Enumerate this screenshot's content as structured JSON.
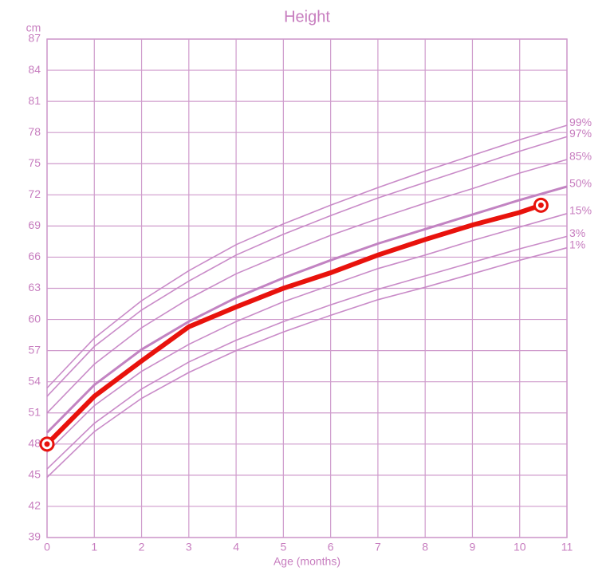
{
  "chart_data": {
    "type": "line",
    "title": "Height",
    "y_unit": "cm",
    "x_label": "Age (months)",
    "xlim": [
      0,
      11
    ],
    "ylim": [
      39,
      87
    ],
    "xticks": [
      0,
      1,
      2,
      3,
      4,
      5,
      6,
      7,
      8,
      9,
      10,
      11
    ],
    "yticks": [
      39,
      42,
      45,
      48,
      51,
      54,
      57,
      60,
      63,
      66,
      69,
      72,
      75,
      78,
      81,
      84,
      87
    ],
    "grid": true,
    "grid_color": "#cf9bcc",
    "x": [
      0,
      1,
      2,
      3,
      4,
      5,
      6,
      7,
      8,
      9,
      10,
      11
    ],
    "series": [
      {
        "name": "99%",
        "color": "#c98bc8",
        "values": [
          53.4,
          58.2,
          61.8,
          64.7,
          67.2,
          69.2,
          71.0,
          72.7,
          74.3,
          75.8,
          77.3,
          78.7
        ]
      },
      {
        "name": "97%",
        "color": "#c98bc8",
        "values": [
          52.6,
          57.4,
          60.9,
          63.7,
          66.2,
          68.2,
          70.0,
          71.7,
          73.2,
          74.7,
          76.2,
          77.6
        ]
      },
      {
        "name": "85%",
        "color": "#c98bc8",
        "values": [
          51.0,
          55.7,
          59.2,
          62.0,
          64.4,
          66.3,
          68.1,
          69.7,
          71.2,
          72.6,
          74.1,
          75.4
        ]
      },
      {
        "name": "50%",
        "color": "#c283c2",
        "values": [
          49.1,
          53.7,
          57.1,
          59.8,
          62.1,
          64.0,
          65.7,
          67.3,
          68.7,
          70.1,
          71.5,
          72.8
        ]
      },
      {
        "name": "15%",
        "color": "#c98bc8",
        "values": [
          47.2,
          51.7,
          55.0,
          57.6,
          59.8,
          61.7,
          63.3,
          64.9,
          66.2,
          67.6,
          68.9,
          70.2
        ]
      },
      {
        "name": "3%",
        "color": "#c98bc8",
        "values": [
          45.6,
          50.0,
          53.3,
          55.9,
          58.0,
          59.8,
          61.4,
          62.9,
          64.2,
          65.5,
          66.8,
          68.0
        ]
      },
      {
        "name": "1%",
        "color": "#c98bc8",
        "values": [
          44.8,
          49.2,
          52.4,
          54.9,
          57.0,
          58.8,
          60.4,
          61.9,
          63.1,
          64.4,
          65.7,
          66.9
        ]
      }
    ],
    "measurement": {
      "color": "#e8120c",
      "x": [
        0,
        1,
        2,
        3,
        4,
        5,
        6,
        7,
        8,
        9,
        10,
        10.45
      ],
      "values": [
        48.0,
        52.6,
        56.0,
        59.3,
        61.2,
        63.0,
        64.5,
        66.2,
        67.7,
        69.1,
        70.3,
        71.0
      ]
    }
  }
}
